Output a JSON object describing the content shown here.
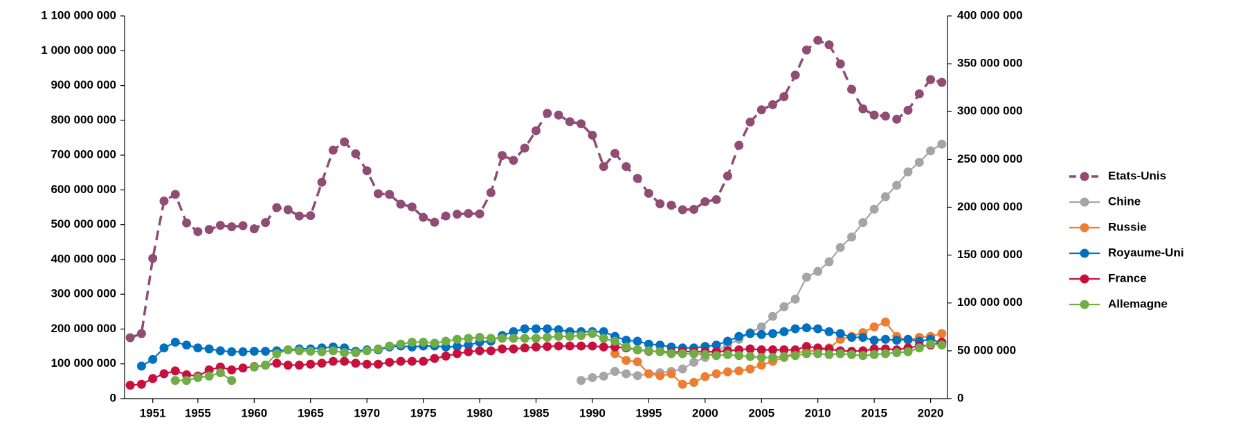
{
  "chart_data": {
    "type": "line",
    "x": [
      1949,
      1950,
      1951,
      1952,
      1953,
      1954,
      1955,
      1956,
      1957,
      1958,
      1959,
      1960,
      1961,
      1962,
      1963,
      1964,
      1965,
      1966,
      1967,
      1968,
      1969,
      1970,
      1971,
      1972,
      1973,
      1974,
      1975,
      1976,
      1977,
      1978,
      1979,
      1980,
      1981,
      1982,
      1983,
      1984,
      1985,
      1986,
      1987,
      1988,
      1989,
      1990,
      1991,
      1992,
      1993,
      1994,
      1995,
      1996,
      1997,
      1998,
      1999,
      2000,
      2001,
      2002,
      2003,
      2004,
      2005,
      2006,
      2007,
      2008,
      2009,
      2010,
      2011,
      2012,
      2013,
      2014,
      2015,
      2016,
      2017,
      2018,
      2019,
      2020,
      2021
    ],
    "xlim": [
      1948.5,
      2021.5
    ],
    "xticks": [
      1951,
      1955,
      1960,
      1965,
      1970,
      1975,
      1980,
      1985,
      1990,
      1995,
      2000,
      2005,
      2010,
      2015,
      2020
    ],
    "ylim": [
      0,
      1100000000
    ],
    "yticks": [
      0,
      {
        "value": 100000000,
        "label": "100 000 000"
      },
      {
        "value": 200000000,
        "label": "200 000 000"
      },
      {
        "value": 300000000,
        "label": "300 000 000"
      },
      {
        "value": 400000000,
        "label": "400 000 000"
      },
      {
        "value": 500000000,
        "label": "500 000 000"
      },
      {
        "value": 600000000,
        "label": "600 000 000"
      },
      {
        "value": 700000000,
        "label": "700 000 000"
      },
      {
        "value": 800000000,
        "label": "800 000 000"
      },
      {
        "value": 900000000,
        "label": "900 000 000"
      },
      {
        "value": 1000000000,
        "label": "1 000 000 000"
      },
      {
        "value": 1100000000,
        "label": "1 100 000 000"
      }
    ],
    "y2lim": [
      0,
      400000000
    ],
    "y2ticks": [
      0,
      {
        "value": 50000000,
        "label": "50 000 000"
      },
      {
        "value": 100000000,
        "label": "100 000 000"
      },
      {
        "value": 150000000,
        "label": "150 000 000"
      },
      {
        "value": 200000000,
        "label": "200 000 000"
      },
      {
        "value": 250000000,
        "label": "250 000 000"
      },
      {
        "value": 300000000,
        "label": "300 000 000"
      },
      {
        "value": 350000000,
        "label": "350 000 000"
      },
      {
        "value": 400000000,
        "label": "400 000 000"
      }
    ],
    "legend": "right",
    "series": [
      {
        "name": "Etats-Unis",
        "color": "#904c74",
        "line_style": "dashed",
        "axis": "y",
        "values": [
          175000000,
          187000000,
          403000000,
          568000000,
          587000000,
          505000000,
          480000000,
          486000000,
          498000000,
          494000000,
          497000000,
          488000000,
          506000000,
          549000000,
          543000000,
          525000000,
          526000000,
          622000000,
          714000000,
          738000000,
          704000000,
          655000000,
          589000000,
          587000000,
          559000000,
          551000000,
          521000000,
          507000000,
          525000000,
          530000000,
          532000000,
          531000000,
          592000000,
          699000000,
          685000000,
          720000000,
          770000000,
          820000000,
          815000000,
          796000000,
          790000000,
          757000000,
          667000000,
          705000000,
          667000000,
          633000000,
          590000000,
          560000000,
          556000000,
          543000000,
          544000000,
          566000000,
          572000000,
          640000000,
          728000000,
          795000000,
          830000000,
          845000000,
          868000000,
          930000000,
          1002000000,
          1030000000,
          1017000000,
          962000000,
          889000000,
          833000000,
          815000000,
          812000000,
          803000000,
          829000000,
          876000000,
          917000000,
          909000000
        ]
      },
      {
        "name": "Chine",
        "color": "#a5a5a5",
        "axis": "y2",
        "values": [
          null,
          null,
          null,
          null,
          null,
          null,
          null,
          null,
          null,
          null,
          null,
          null,
          null,
          null,
          null,
          null,
          null,
          null,
          null,
          null,
          null,
          null,
          null,
          null,
          null,
          null,
          null,
          null,
          null,
          null,
          null,
          null,
          null,
          null,
          null,
          null,
          null,
          null,
          null,
          null,
          19000000,
          22000000,
          23500000,
          28500000,
          26000000,
          24000000,
          26000000,
          27000000,
          28500000,
          31000000,
          38000000,
          43000000,
          49500000,
          56000000,
          62000000,
          69000000,
          75000000,
          86000000,
          96000000,
          104000000,
          127000000,
          133000000,
          143000000,
          158000000,
          169000000,
          184000000,
          198000000,
          211000000,
          223000000,
          237000000,
          247000000,
          259000000,
          266000000
        ]
      },
      {
        "name": "Russie",
        "color": "#ed7d31",
        "axis": "y2",
        "values": [
          null,
          null,
          null,
          null,
          null,
          null,
          null,
          null,
          null,
          null,
          null,
          null,
          null,
          null,
          null,
          null,
          null,
          null,
          null,
          null,
          null,
          null,
          null,
          null,
          null,
          null,
          null,
          null,
          null,
          null,
          null,
          null,
          null,
          null,
          null,
          null,
          null,
          null,
          null,
          null,
          null,
          null,
          null,
          47000000,
          40000000,
          38500000,
          26000000,
          24000000,
          26000000,
          15000000,
          17000000,
          23000000,
          26000000,
          28000000,
          29000000,
          31000000,
          35000000,
          39000000,
          43000000,
          48000000,
          49500000,
          50000000,
          53000000,
          62000000,
          65000000,
          69000000,
          75000000,
          80000000,
          65000000,
          61000000,
          64000000,
          65000000,
          68000000
        ]
      },
      {
        "name": "Royaume-Uni",
        "color": "#0070c0",
        "axis": "y2",
        "values": [
          null,
          34000000,
          41000000,
          53000000,
          59000000,
          56000000,
          53000000,
          52000000,
          50000000,
          49000000,
          49000000,
          49500000,
          49500000,
          50000000,
          51000000,
          52000000,
          52000000,
          53000000,
          54000000,
          53000000,
          49500000,
          51000000,
          51000000,
          54000000,
          55000000,
          54000000,
          55000000,
          55000000,
          54000000,
          54500000,
          56000000,
          59000000,
          60000000,
          66000000,
          70000000,
          73000000,
          73000000,
          73000000,
          72000000,
          70000000,
          70000000,
          70000000,
          70000000,
          65000000,
          61000000,
          60000000,
          57000000,
          56000000,
          54000000,
          53000000,
          53000000,
          54500000,
          56000000,
          60000000,
          65000000,
          68000000,
          67000000,
          68000000,
          70000000,
          73000000,
          74000000,
          73000000,
          70000000,
          68000000,
          64000000,
          64000000,
          61000000,
          62000000,
          61000000,
          62000000,
          60000000,
          62000000,
          58000000
        ]
      },
      {
        "name": "France",
        "color": "#c8103e",
        "axis": "y2",
        "values": [
          14000000,
          15000000,
          21000000,
          26000000,
          29000000,
          25000000,
          23500000,
          30000000,
          33000000,
          30000000,
          32000000,
          33500000,
          35000000,
          37000000,
          35000000,
          35000000,
          36000000,
          37000000,
          39000000,
          39000000,
          37000000,
          36000000,
          36000000,
          38000000,
          39000000,
          39000000,
          39000000,
          42000000,
          44500000,
          47000000,
          49000000,
          50000000,
          50000000,
          52000000,
          52000000,
          53000000,
          54000000,
          54500000,
          55000000,
          55000000,
          55000000,
          55000000,
          54000000,
          54000000,
          53000000,
          51000000,
          49500000,
          49500000,
          48000000,
          49500000,
          49000000,
          49000000,
          49000000,
          50000000,
          51000000,
          52000000,
          51000000,
          51000000,
          51000000,
          51000000,
          54500000,
          53000000,
          52000000,
          50000000,
          49500000,
          50000000,
          52000000,
          52000000,
          51000000,
          53000000,
          55000000,
          56000000,
          59000000
        ]
      },
      {
        "name": "Allemagne",
        "color": "#70ad47",
        "axis": "y2",
        "values": [
          null,
          null,
          null,
          null,
          19000000,
          19000000,
          22000000,
          23500000,
          27000000,
          19000000,
          null,
          33000000,
          35000000,
          47000000,
          51000000,
          50000000,
          49500000,
          49000000,
          50000000,
          48000000,
          48000000,
          50000000,
          52000000,
          55000000,
          57000000,
          59000000,
          59000000,
          58000000,
          60000000,
          62000000,
          63000000,
          64000000,
          63000000,
          63000000,
          63000000,
          63000000,
          63000000,
          64000000,
          65000000,
          65000000,
          66000000,
          68000000,
          63000000,
          60000000,
          54000000,
          51000000,
          50000000,
          49000000,
          47000000,
          47000000,
          47000000,
          46000000,
          45000000,
          46000000,
          45000000,
          44000000,
          43000000,
          43000000,
          44000000,
          45000000,
          47000000,
          47000000,
          46000000,
          47000000,
          46000000,
          45000000,
          46000000,
          47000000,
          48000000,
          49000000,
          53000000,
          57000000,
          56000000
        ]
      }
    ]
  }
}
